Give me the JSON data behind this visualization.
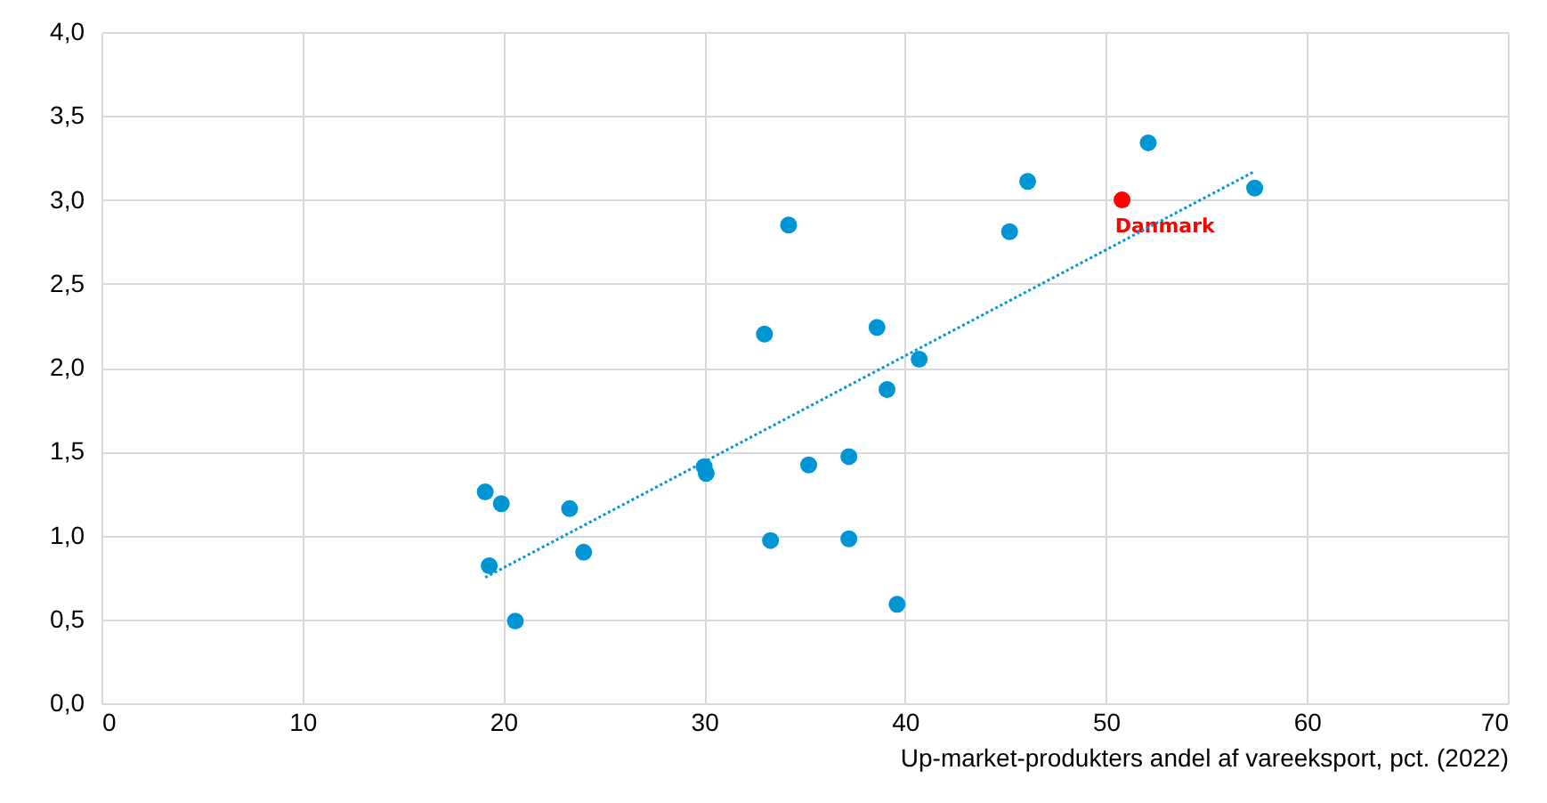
{
  "chart_data": {
    "type": "scatter",
    "xlabel": "Up-market-produkters andel af vareeksport, pct. (2022)",
    "xlim": [
      0,
      70
    ],
    "xticks": [
      0,
      10,
      20,
      30,
      40,
      50,
      60,
      70
    ],
    "ylim": [
      0,
      4
    ],
    "yticks": [
      {
        "value": 0,
        "label": "0,0"
      },
      {
        "value": 0.5,
        "label": "0,5"
      },
      {
        "value": 1,
        "label": "1,0"
      },
      {
        "value": 1.5,
        "label": "1,5"
      },
      {
        "value": 2,
        "label": "2,0"
      },
      {
        "value": 2.5,
        "label": "2,5"
      },
      {
        "value": 3,
        "label": "3,0"
      },
      {
        "value": 3.5,
        "label": "3,5"
      },
      {
        "value": 4,
        "label": "4,0"
      }
    ],
    "grid": true,
    "marker": "circle",
    "series": [
      {
        "color": "#0096d6",
        "x": [
          19.1,
          19.9,
          19.3,
          20.6,
          23.3,
          24.0,
          30.0,
          30.1,
          33.3,
          33.0,
          34.2,
          35.2,
          37.2,
          37.2,
          38.6,
          39.1,
          39.6,
          40.7,
          45.2,
          46.1,
          52.1,
          57.4
        ],
        "values": [
          1.26,
          1.19,
          0.82,
          0.49,
          1.16,
          0.9,
          1.41,
          1.37,
          0.97,
          2.2,
          2.85,
          1.42,
          1.47,
          0.98,
          2.24,
          1.87,
          0.59,
          2.05,
          2.81,
          3.11,
          3.34,
          3.07
        ]
      },
      {
        "name": "Danmark",
        "color": "#ff0000",
        "x": [
          50.8
        ],
        "values": [
          3.0
        ]
      },
      {
        "type": "line",
        "marker": "none",
        "line_style": "dotted",
        "color": "#0096d6",
        "x": [
          19.1,
          57.4
        ],
        "values": [
          0.75,
          3.17
        ]
      }
    ]
  }
}
